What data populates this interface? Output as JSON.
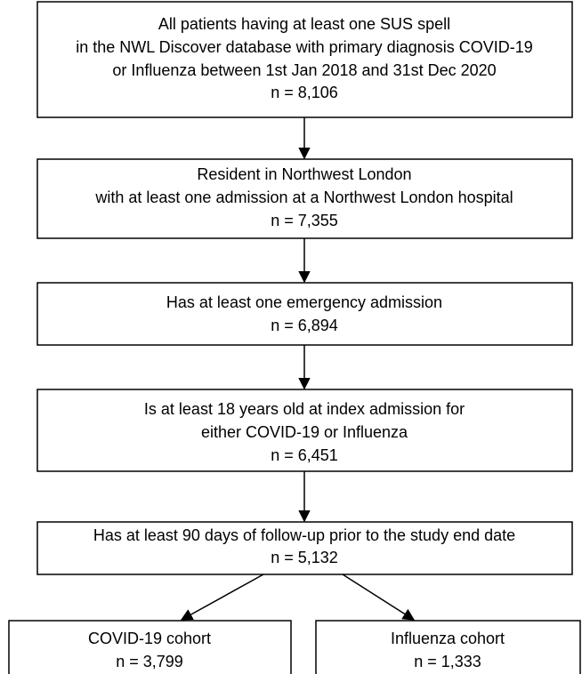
{
  "nodes": [
    {
      "lines": [
        "All patients having at least one SUS spell",
        "in the NWL Discover database with primary diagnosis COVID-19",
        "or Influenza between 1st Jan 2018 and 31st Dec 2020",
        "n = 8,106"
      ]
    },
    {
      "lines": [
        "Resident in Northwest London",
        "with at least one admission at a Northwest London hospital",
        "n = 7,355"
      ]
    },
    {
      "lines": [
        "Has at least one emergency admission",
        "n = 6,894"
      ]
    },
    {
      "lines": [
        "Is at least 18 years old at index admission for",
        "either COVID-19 or Influenza",
        "n = 6,451"
      ]
    },
    {
      "lines": [
        "Has at least 90 days of follow-up prior to the study end date",
        "n = 5,132"
      ]
    },
    {
      "lines": [
        "COVID-19 cohort",
        "n = 3,799"
      ]
    },
    {
      "lines": [
        "Influenza cohort",
        "n = 1,333"
      ]
    }
  ]
}
